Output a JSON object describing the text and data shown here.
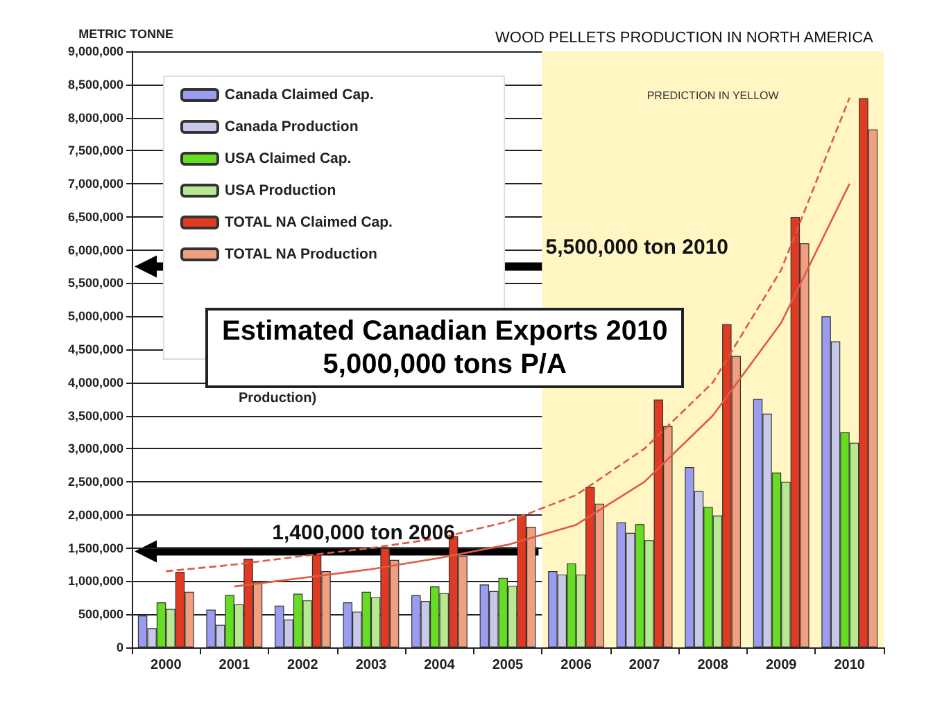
{
  "chart_data": {
    "type": "bar",
    "title": "WOOD PELLETS PRODUCTION IN NORTH AMERICA",
    "ylabel": "METRIC TONNE",
    "categories": [
      "2000",
      "2001",
      "2002",
      "2003",
      "2004",
      "2005",
      "2006",
      "2007",
      "2008",
      "2009",
      "2010"
    ],
    "series": [
      {
        "name": "Canada Claimed Cap.",
        "color": "#9a9cf0",
        "values": [
          480000,
          570000,
          630000,
          680000,
          790000,
          950000,
          1150000,
          1890000,
          2720000,
          3750000,
          5000000
        ]
      },
      {
        "name": "Canada Production",
        "color": "#c8c8e8",
        "values": [
          290000,
          340000,
          420000,
          540000,
          700000,
          850000,
          1100000,
          1730000,
          2360000,
          3530000,
          4620000
        ]
      },
      {
        "name": "USA Claimed Cap.",
        "color": "#66dd22",
        "values": [
          680000,
          790000,
          810000,
          840000,
          920000,
          1050000,
          1270000,
          1860000,
          2120000,
          2640000,
          3250000
        ]
      },
      {
        "name": "USA Production",
        "color": "#b8e890",
        "values": [
          580000,
          650000,
          710000,
          760000,
          820000,
          930000,
          1100000,
          1620000,
          1990000,
          2500000,
          3090000
        ]
      },
      {
        "name": "TOTAL NA Claimed Cap.",
        "color": "#e03a22",
        "values": [
          1140000,
          1340000,
          1400000,
          1500000,
          1680000,
          2000000,
          2420000,
          3740000,
          4880000,
          6500000,
          8290000
        ]
      },
      {
        "name": "TOTAL NA Production",
        "color": "#f0a080",
        "values": [
          840000,
          990000,
          1150000,
          1320000,
          1380000,
          1820000,
          2170000,
          3340000,
          4400000,
          6100000,
          7820000
        ]
      },
      {
        "type": "line",
        "color": "#e05a40",
        "line_style": "dashed",
        "values": [
          1150000,
          1250000,
          1380000,
          1500000,
          1650000,
          1900000,
          2300000,
          3000000,
          4000000,
          5700000,
          8300000
        ]
      },
      {
        "type": "line",
        "color": "#e05a40",
        "line_style": "solid",
        "values": [
          null,
          920000,
          1050000,
          1180000,
          1350000,
          1550000,
          1850000,
          2500000,
          3500000,
          4900000,
          7000000
        ]
      }
    ],
    "ylim": [
      0,
      9000000
    ],
    "yticks": [
      0,
      {
        "value": 500000,
        "label": "500,000"
      },
      {
        "value": 1000000,
        "label": "1,000,000"
      },
      {
        "value": 1500000,
        "label": "1,500,000"
      },
      {
        "value": 2000000,
        "label": "2,000,000"
      },
      {
        "value": 2500000,
        "label": "2,500,000"
      },
      {
        "value": 3000000,
        "label": "3,000,000"
      },
      {
        "value": 3500000,
        "label": "3,500,000"
      },
      {
        "value": 4000000,
        "label": "4,000,000"
      },
      {
        "value": 4500000,
        "label": "4,500,000"
      },
      {
        "value": 5000000,
        "label": "5,000,000"
      },
      {
        "value": 5500000,
        "label": "5,500,000"
      },
      {
        "value": 6000000,
        "label": "6,000,000"
      },
      {
        "value": 6500000,
        "label": "6,500,000"
      },
      {
        "value": 7000000,
        "label": "7,000,000"
      },
      {
        "value": 7500000,
        "label": "7,500,000"
      },
      {
        "value": 8000000,
        "label": "8,000,000"
      },
      {
        "value": 8500000,
        "label": "8,500,000"
      },
      {
        "value": 9000000,
        "label": "9,000,000"
      }
    ],
    "grid": "y",
    "legend": "top left",
    "marker": "none",
    "bands": [
      {
        "axis": "x",
        "from": "2006",
        "to": "2010",
        "label": "PREDICTION IN YELLOW",
        "color": "#fff6c4"
      }
    ],
    "annotations": [
      {
        "text": "5,500,000 ton 2010",
        "x": "2009",
        "y": 5750000
      },
      {
        "text": "1,400,000 ton 2006",
        "x": "2005",
        "y": 1450000
      },
      "Estimated Canadian Exports 2010\n5,000,000 tons P/A",
      "Production)"
    ]
  }
}
